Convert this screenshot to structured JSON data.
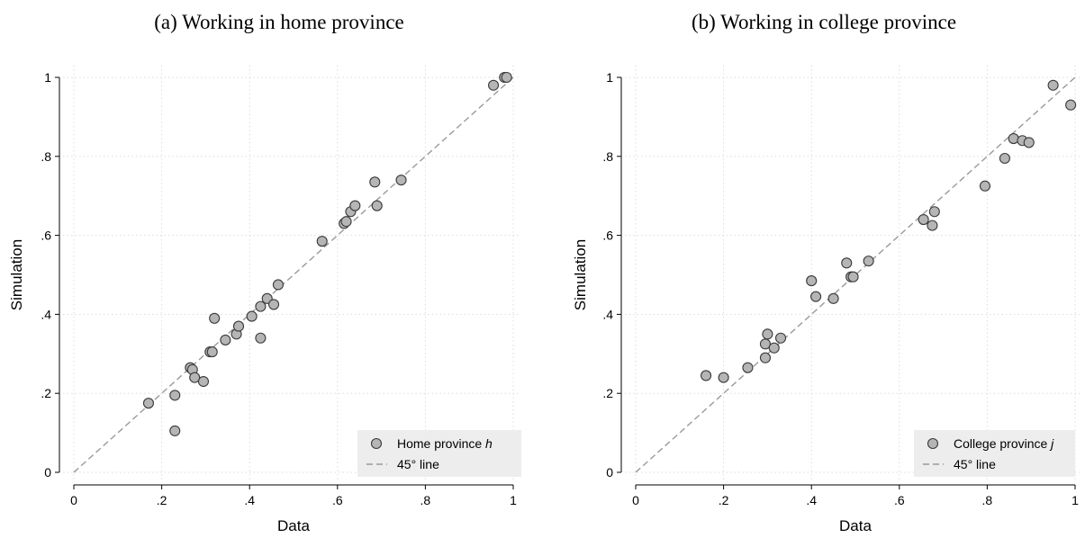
{
  "chart_data": [
    {
      "type": "scatter",
      "title": "(a) Working in home province",
      "xlabel": "Data",
      "ylabel": "Simulation",
      "xlim": [
        0,
        1
      ],
      "ylim": [
        0,
        1
      ],
      "xticks": [
        "0",
        ".2",
        ".4",
        ".6",
        ".8",
        "1"
      ],
      "yticks": [
        "0",
        ".2",
        ".4",
        ".6",
        ".8",
        "1"
      ],
      "grid": true,
      "legend_position": "bottom-right",
      "series": [
        {
          "name": "Home province h",
          "marker": "circle",
          "color": "#b5b5b5",
          "x": [
            0.17,
            0.23,
            0.23,
            0.265,
            0.27,
            0.275,
            0.295,
            0.31,
            0.315,
            0.32,
            0.345,
            0.37,
            0.375,
            0.405,
            0.425,
            0.425,
            0.44,
            0.455,
            0.465,
            0.565,
            0.615,
            0.62,
            0.63,
            0.64,
            0.685,
            0.69,
            0.745,
            0.955,
            0.98,
            0.985
          ],
          "y": [
            0.175,
            0.105,
            0.195,
            0.265,
            0.26,
            0.24,
            0.23,
            0.305,
            0.305,
            0.39,
            0.335,
            0.35,
            0.37,
            0.395,
            0.42,
            0.34,
            0.44,
            0.425,
            0.475,
            0.585,
            0.63,
            0.635,
            0.66,
            0.675,
            0.735,
            0.675,
            0.74,
            0.98,
            1.0,
            1.0
          ]
        }
      ],
      "reference_line": {
        "name": "45° line",
        "style": "dashed",
        "color": "#9a9a9a"
      },
      "legend": {
        "series_label": "Home province",
        "series_symbol": "h",
        "line_label": "45° line"
      }
    },
    {
      "type": "scatter",
      "title": "(b) Working in college province",
      "xlabel": "Data",
      "ylabel": "Simulation",
      "xlim": [
        0,
        1
      ],
      "ylim": [
        0,
        1
      ],
      "xticks": [
        "0",
        ".2",
        ".4",
        ".6",
        ".8",
        "1"
      ],
      "yticks": [
        "0",
        ".2",
        ".4",
        ".6",
        ".8",
        "1"
      ],
      "grid": true,
      "legend_position": "bottom-right",
      "series": [
        {
          "name": "College province j",
          "marker": "circle",
          "color": "#b5b5b5",
          "x": [
            0.16,
            0.2,
            0.255,
            0.295,
            0.295,
            0.3,
            0.315,
            0.33,
            0.4,
            0.41,
            0.45,
            0.48,
            0.49,
            0.495,
            0.53,
            0.655,
            0.675,
            0.68,
            0.795,
            0.84,
            0.86,
            0.88,
            0.895,
            0.95,
            0.99
          ],
          "y": [
            0.245,
            0.24,
            0.265,
            0.29,
            0.325,
            0.35,
            0.315,
            0.34,
            0.485,
            0.445,
            0.44,
            0.53,
            0.495,
            0.495,
            0.535,
            0.64,
            0.625,
            0.66,
            0.725,
            0.795,
            0.845,
            0.84,
            0.835,
            0.98,
            0.93
          ]
        }
      ],
      "reference_line": {
        "name": "45° line",
        "style": "dashed",
        "color": "#9a9a9a"
      },
      "legend": {
        "series_label": "College province",
        "series_symbol": "j",
        "line_label": "45° line"
      }
    }
  ]
}
